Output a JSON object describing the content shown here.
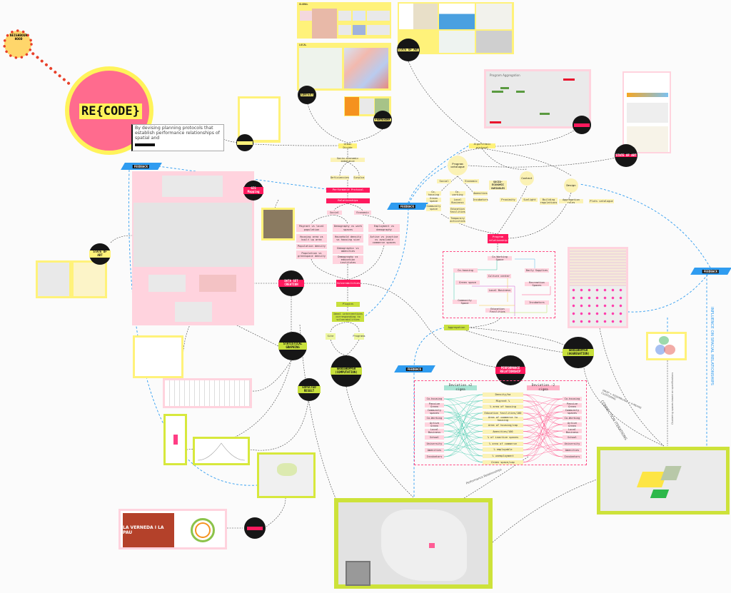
{
  "title": {
    "logo": "RE{CODE}",
    "description": "By devising planning protocols that establish performance relationships of spatial and",
    "neighbourhood": "NEIGHBOUR HOOD"
  },
  "feedback_label": "FEEDBACK",
  "nodes": {
    "state_of_art": "STATE OF ART",
    "context": "CONTEXT",
    "framework": "FRAMEWORK",
    "gis_mapping": "GIS Mapping",
    "data_set_creation": "DATA SET CREATION",
    "statistical_graphing": "STATISTICAL GRAPHING",
    "grasshopper_computation": "GRASSHOPPER (COMPUTATION)",
    "expected_result": "EXPECTED RESULT",
    "performance_relationship": "PERFORMANCE RELATIONSHIP",
    "grasshopper_aggregation": "GRASSHOPPER (AGGREGATION)"
  },
  "panels": {
    "global": "GLOBAL",
    "local": "LOCAL",
    "program_aggregation": "Program Aggregation",
    "verneda": "LA VERNEDA I LA PAU"
  },
  "left_flow": {
    "urban_divide": "Urban Divide",
    "imbalance": "Socio-economic imbalance",
    "deficiencies": "Deficiencies",
    "surplus": "Surplus",
    "performance_protocol": "Performance Protocol",
    "relationships": "Relationships",
    "social": "Social",
    "economic": "Economic",
    "col1": [
      "Migrant vs local population",
      "Housing area vs built up area",
      "Population density",
      "Population vs greenspace density"
    ],
    "col2": [
      "Demography vs work spaces",
      "Household density vs housing size",
      "Demographic vs amenities",
      "Demography vs education institutes"
    ],
    "col3": [
      "Employment vs demography",
      "Active vs inactive vs available commerce spaces"
    ],
    "vulnerabilities": "Vulnerabilities",
    "plugins": "Plugins",
    "ideal": "Ideal interventions corresponding to vulnerabilities",
    "site": "Site",
    "programs": "Programs"
  },
  "right_flow": {
    "algorithmic_protocol": "Algorithmic protocol",
    "program_catalogue": "Program catalogue",
    "social": "Social",
    "economic": "Economic",
    "social_items": [
      "Co-housing",
      "Green space",
      "Community space"
    ],
    "economic_items": [
      "Co-working",
      "Local Business",
      "Education facilities",
      "Temporary activities"
    ],
    "other_items": [
      "Amenities",
      "Incubators"
    ],
    "socio_vars": "SOCIO-ECONOMIC VARIABLES",
    "context": "Context",
    "context_items": [
      "Proximity",
      "Sunlight",
      "Building regulations"
    ],
    "design": "Design",
    "design_items": [
      "Aggregation rules",
      "Plots catalogue"
    ],
    "program_relationship": "Program relationship",
    "aggregation": "Aggregation"
  },
  "program_network": [
    "Co-Working Space",
    "Co-housing",
    "Daily Supplies",
    "Culture center",
    "Green space",
    "Recreation Spaces",
    "Local Business",
    "Community Space",
    "Incubators",
    "Education Facilities"
  ],
  "deviation": {
    "plus_title": "Deviation +2 sigma",
    "minus_title": "Deviation -2 sigma",
    "programs": [
      "Co-housing",
      "Passive Green",
      "Community spaces",
      "Co-Working",
      "Active Green",
      "Local Business",
      "School",
      "University",
      "Amenities",
      "Incubators"
    ],
    "indicators": [
      "Density/ha",
      "Migrant %",
      "% area of housing",
      "Education facilities/100",
      "Area of commerce to housing",
      "Area of housing/cap",
      "Amenities/100",
      "% of inactive spaces",
      "% area of commerce",
      "% employable",
      "% unemployment",
      "Green space/cap"
    ]
  },
  "annotations": {
    "connection_iterations": "CONNECTION ITERATIONS",
    "influence": "INFLUENCE ON SPACIAL RELATIONSHIPS",
    "performance_relationships": "Performance Relationships",
    "wasp": "WASP + ASSEMBLAGE + K-MEANS CLUSTERING",
    "clustering": "Clustering spaces based on specifications"
  },
  "colors": {
    "pink": "#ff6b8e",
    "red": "#ff1a5e",
    "yellow": "#fff27a",
    "lime": "#c8e03c",
    "blue": "#2f9cf0",
    "teal": "#3cc8a8"
  }
}
